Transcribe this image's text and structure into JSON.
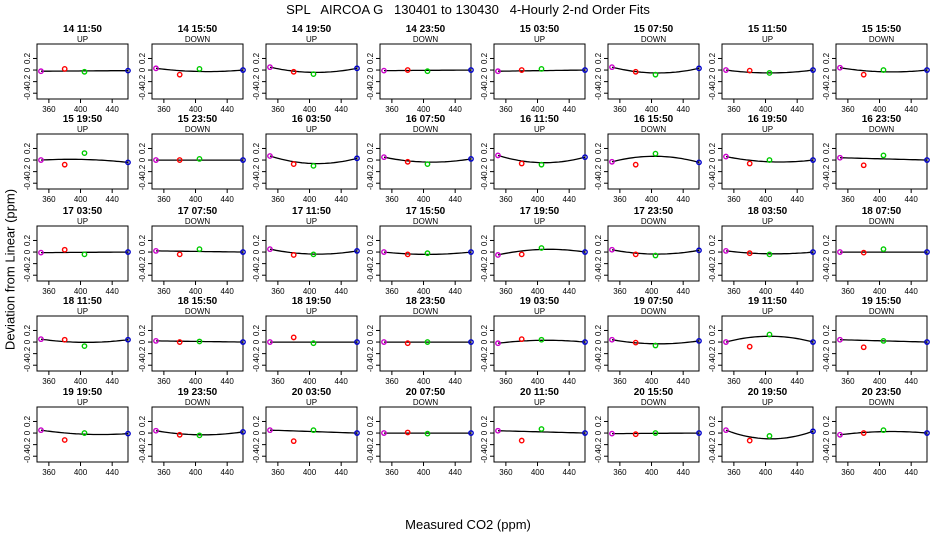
{
  "title": "SPL   AIRCOA G   130401 to 130430   4-Hourly 2-nd Order Fits",
  "xlabel": "Measured CO2 (ppm)",
  "ylabel": "Deviation from Linear (ppm)",
  "chart_data": {
    "type": "scatter",
    "title": "SPL   AIRCOA G   130401 to 130430   4-Hourly 2-nd Order Fits",
    "xlabel": "Measured CO2 (ppm)",
    "ylabel": "Deviation from Linear (ppm)",
    "xlim": [
      345,
      460
    ],
    "ylim": [
      -0.5,
      0.45
    ],
    "x_ticks": [
      360,
      400,
      440
    ],
    "x_tick_labels": [
      "360",
      "400",
      "440"
    ],
    "y_ticks": [
      -0.4,
      -0.2,
      0,
      0.2
    ],
    "y_tick_labels": [
      "-0.4",
      "-0.2",
      "0",
      "0.2"
    ],
    "standard_co2": [
      350,
      380,
      405,
      460
    ],
    "point_colors": [
      "#cc00cc",
      "#ff0000",
      "#00cc00",
      "#0000cc"
    ],
    "fit_color": "#000000",
    "panels": [
      {
        "title": "14 11:50",
        "subtitle": "UP",
        "deviations": [
          -0.02,
          0.02,
          -0.03,
          -0.01
        ],
        "curve": 0.0
      },
      {
        "title": "14 15:50",
        "subtitle": "DOWN",
        "deviations": [
          0.03,
          -0.08,
          0.02,
          0.0
        ],
        "curve": 0.04
      },
      {
        "title": "14 19:50",
        "subtitle": "UP",
        "deviations": [
          0.05,
          -0.03,
          -0.07,
          0.03
        ],
        "curve": 0.08
      },
      {
        "title": "14 23:50",
        "subtitle": "DOWN",
        "deviations": [
          -0.01,
          0.0,
          -0.02,
          0.0
        ],
        "curve": 0.0
      },
      {
        "title": "15 03:50",
        "subtitle": "UP",
        "deviations": [
          -0.02,
          0.0,
          0.02,
          0.0
        ],
        "curve": 0.0
      },
      {
        "title": "15 07:50",
        "subtitle": "DOWN",
        "deviations": [
          0.05,
          -0.03,
          -0.08,
          0.03
        ],
        "curve": 0.09
      },
      {
        "title": "15 11:50",
        "subtitle": "UP",
        "deviations": [
          0.0,
          -0.01,
          -0.05,
          0.0
        ],
        "curve": 0.05
      },
      {
        "title": "15 15:50",
        "subtitle": "DOWN",
        "deviations": [
          0.04,
          -0.08,
          0.0,
          0.0
        ],
        "curve": 0.05
      },
      {
        "title": "15 19:50",
        "subtitle": "UP",
        "deviations": [
          0.0,
          -0.08,
          0.12,
          -0.04
        ],
        "curve": -0.03
      },
      {
        "title": "15 23:50",
        "subtitle": "DOWN",
        "deviations": [
          0.0,
          0.0,
          0.02,
          0.0
        ],
        "curve": 0.0
      },
      {
        "title": "16 03:50",
        "subtitle": "UP",
        "deviations": [
          0.07,
          -0.07,
          -0.1,
          0.03
        ],
        "curve": 0.11
      },
      {
        "title": "16 07:50",
        "subtitle": "DOWN",
        "deviations": [
          0.05,
          -0.03,
          -0.07,
          0.02
        ],
        "curve": 0.07
      },
      {
        "title": "16 11:50",
        "subtitle": "UP",
        "deviations": [
          0.08,
          -0.06,
          -0.08,
          0.05
        ],
        "curve": 0.11
      },
      {
        "title": "16 15:50",
        "subtitle": "DOWN",
        "deviations": [
          -0.03,
          -0.08,
          0.11,
          -0.04
        ],
        "curve": -0.1
      },
      {
        "title": "16 19:50",
        "subtitle": "UP",
        "deviations": [
          0.06,
          -0.06,
          0.0,
          0.0
        ],
        "curve": 0.06
      },
      {
        "title": "16 23:50",
        "subtitle": "DOWN",
        "deviations": [
          0.04,
          -0.09,
          0.08,
          0.0
        ],
        "curve": 0.0
      },
      {
        "title": "17 03:50",
        "subtitle": "UP",
        "deviations": [
          -0.01,
          0.04,
          -0.04,
          0.0
        ],
        "curve": 0.0
      },
      {
        "title": "17 07:50",
        "subtitle": "DOWN",
        "deviations": [
          0.02,
          -0.04,
          0.05,
          0.0
        ],
        "curve": 0.0
      },
      {
        "title": "17 11:50",
        "subtitle": "UP",
        "deviations": [
          0.05,
          -0.05,
          -0.04,
          0.02
        ],
        "curve": 0.07
      },
      {
        "title": "17 15:50",
        "subtitle": "DOWN",
        "deviations": [
          0.0,
          -0.04,
          -0.02,
          0.0
        ],
        "curve": 0.04
      },
      {
        "title": "17 19:50",
        "subtitle": "UP",
        "deviations": [
          -0.05,
          -0.04,
          0.07,
          0.0
        ],
        "curve": -0.07
      },
      {
        "title": "17 23:50",
        "subtitle": "DOWN",
        "deviations": [
          0.04,
          -0.04,
          -0.06,
          0.03
        ],
        "curve": 0.07
      },
      {
        "title": "18 03:50",
        "subtitle": "UP",
        "deviations": [
          0.02,
          -0.02,
          -0.04,
          0.0
        ],
        "curve": 0.04
      },
      {
        "title": "18 07:50",
        "subtitle": "DOWN",
        "deviations": [
          0.0,
          -0.01,
          0.05,
          0.0
        ],
        "curve": 0.0
      },
      {
        "title": "18 11:50",
        "subtitle": "UP",
        "deviations": [
          0.05,
          0.04,
          -0.07,
          0.04
        ],
        "curve": 0.05
      },
      {
        "title": "18 15:50",
        "subtitle": "DOWN",
        "deviations": [
          0.02,
          0.0,
          0.01,
          0.0
        ],
        "curve": 0.0
      },
      {
        "title": "18 19:50",
        "subtitle": "UP",
        "deviations": [
          0.0,
          0.08,
          -0.02,
          0.0
        ],
        "curve": 0.0
      },
      {
        "title": "18 23:50",
        "subtitle": "DOWN",
        "deviations": [
          0.0,
          -0.02,
          0.0,
          0.0
        ],
        "curve": 0.0
      },
      {
        "title": "19 03:50",
        "subtitle": "UP",
        "deviations": [
          -0.02,
          0.05,
          0.04,
          0.0
        ],
        "curve": -0.04
      },
      {
        "title": "19 07:50",
        "subtitle": "DOWN",
        "deviations": [
          0.04,
          -0.01,
          -0.06,
          0.02
        ],
        "curve": 0.06
      },
      {
        "title": "19 11:50",
        "subtitle": "UP",
        "deviations": [
          0.0,
          -0.08,
          0.13,
          0.0
        ],
        "curve": -0.1
      },
      {
        "title": "19 15:50",
        "subtitle": "DOWN",
        "deviations": [
          0.04,
          -0.09,
          0.02,
          0.0
        ],
        "curve": 0.0
      },
      {
        "title": "19 19:50",
        "subtitle": "UP",
        "deviations": [
          0.05,
          -0.12,
          0.0,
          -0.01
        ],
        "curve": 0.04
      },
      {
        "title": "19 23:50",
        "subtitle": "DOWN",
        "deviations": [
          0.04,
          -0.03,
          -0.04,
          0.02
        ],
        "curve": 0.06
      },
      {
        "title": "20 03:50",
        "subtitle": "UP",
        "deviations": [
          0.05,
          -0.14,
          0.05,
          0.0
        ],
        "curve": 0.0
      },
      {
        "title": "20 07:50",
        "subtitle": "DOWN",
        "deviations": [
          0.0,
          0.01,
          -0.01,
          0.0
        ],
        "curve": 0.0
      },
      {
        "title": "20 11:50",
        "subtitle": "UP",
        "deviations": [
          0.04,
          -0.13,
          0.07,
          0.0
        ],
        "curve": 0.0
      },
      {
        "title": "20 15:50",
        "subtitle": "DOWN",
        "deviations": [
          -0.01,
          -0.02,
          0.0,
          0.0
        ],
        "curve": 0.0
      },
      {
        "title": "20 19:50",
        "subtitle": "UP",
        "deviations": [
          0.05,
          -0.13,
          -0.05,
          0.03
        ],
        "curve": 0.14
      },
      {
        "title": "20 23:50",
        "subtitle": "DOWN",
        "deviations": [
          -0.03,
          0.0,
          0.05,
          0.0
        ],
        "curve": -0.04
      }
    ]
  }
}
